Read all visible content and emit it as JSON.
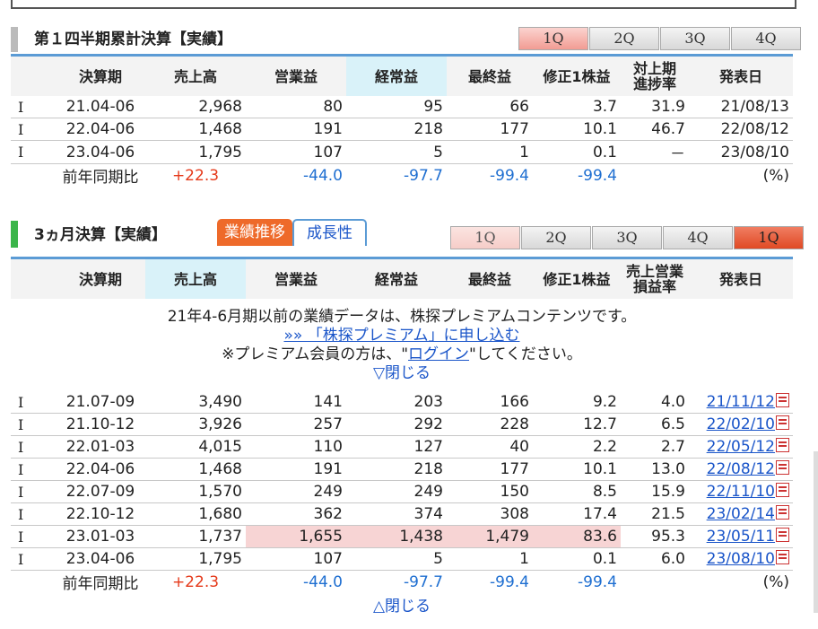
{
  "q1_section": {
    "title": "第１四半期累計決算【実績】",
    "tabs": [
      "1Q",
      "2Q",
      "3Q",
      "4Q"
    ],
    "headers": [
      "決算期",
      "売上高",
      "営業益",
      "経常益",
      "最終益",
      "修正1株益",
      "対上期\n進捗率",
      "発表日"
    ],
    "rows": [
      {
        "mark": "I",
        "period": "21.04-06",
        "sales": "2,968",
        "op": "80",
        "ord": "95",
        "net": "66",
        "eps": "3.7",
        "prog": "31.9",
        "date": "21/08/13"
      },
      {
        "mark": "I",
        "period": "22.04-06",
        "sales": "1,468",
        "op": "191",
        "ord": "218",
        "net": "177",
        "eps": "10.1",
        "prog": "46.7",
        "date": "22/08/12"
      },
      {
        "mark": "I",
        "period": "23.04-06",
        "sales": "1,795",
        "op": "107",
        "ord": "5",
        "net": "1",
        "eps": "0.1",
        "prog": "－",
        "date": "23/08/10"
      }
    ],
    "yoy": {
      "label": "前年同期比",
      "sales": "+22.3",
      "op": "-44.0",
      "ord": "-97.7",
      "net": "-99.4",
      "eps": "-99.4",
      "unit": "(%)"
    }
  },
  "q3m_section": {
    "title": "3ヵ月決算【実績】",
    "tab_trend": "業績推移",
    "tab_growth": "成長性",
    "tabs": [
      "1Q",
      "2Q",
      "3Q",
      "4Q",
      "1Q"
    ],
    "headers": [
      "決算期",
      "売上高",
      "営業益",
      "経常益",
      "最終益",
      "修正1株益",
      "売上営業\n損益率",
      "発表日"
    ],
    "notice_line1": "21年4-6月期以前の業績データは、株探プレミアムコンテンツです。",
    "notice_link": "»» 「株探プレミアム」に申し込む",
    "notice_line3_pre": "※プレミアム会員の方は、\"",
    "notice_login": "ログイン",
    "notice_line3_post": "\"してください。",
    "close_top": "▽閉じる",
    "rows": [
      {
        "mark": "I",
        "period": "21.07-09",
        "sales": "3,490",
        "op": "141",
        "ord": "203",
        "net": "166",
        "eps": "9.2",
        "margin": "4.0",
        "date": "21/11/12"
      },
      {
        "mark": "I",
        "period": "21.10-12",
        "sales": "3,926",
        "op": "257",
        "ord": "292",
        "net": "228",
        "eps": "12.7",
        "margin": "6.5",
        "date": "22/02/10"
      },
      {
        "mark": "I",
        "period": "22.01-03",
        "sales": "4,015",
        "op": "110",
        "ord": "127",
        "net": "40",
        "eps": "2.2",
        "margin": "2.7",
        "date": "22/05/12"
      },
      {
        "mark": "I",
        "period": "22.04-06",
        "sales": "1,468",
        "op": "191",
        "ord": "218",
        "net": "177",
        "eps": "10.1",
        "margin": "13.0",
        "date": "22/08/12"
      },
      {
        "mark": "I",
        "period": "22.07-09",
        "sales": "1,570",
        "op": "249",
        "ord": "249",
        "net": "150",
        "eps": "8.5",
        "margin": "15.9",
        "date": "22/11/10"
      },
      {
        "mark": "I",
        "period": "22.10-12",
        "sales": "1,680",
        "op": "362",
        "ord": "374",
        "net": "308",
        "eps": "17.4",
        "margin": "21.5",
        "date": "23/02/14"
      },
      {
        "mark": "I",
        "period": "23.01-03",
        "sales": "1,737",
        "op": "1,655",
        "ord": "1,438",
        "net": "1,479",
        "eps": "83.6",
        "margin": "95.3",
        "date": "23/05/11",
        "highlight": true
      },
      {
        "mark": "I",
        "period": "23.04-06",
        "sales": "1,795",
        "op": "107",
        "ord": "5",
        "net": "1",
        "eps": "0.1",
        "margin": "6.0",
        "date": "23/08/10"
      }
    ],
    "yoy": {
      "label": "前年同期比",
      "sales": "+22.3",
      "op": "-44.0",
      "ord": "-97.7",
      "net": "-99.4",
      "eps": "-99.4",
      "unit": "(%)"
    },
    "close_bottom": "△閉じる"
  },
  "colors": {
    "accent_orange": "#ee6a2a",
    "positive": "#e5391a",
    "negative": "#1f6fd1",
    "header_blue": "#5b9bd5"
  }
}
